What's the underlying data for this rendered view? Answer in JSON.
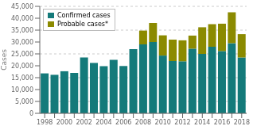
{
  "chart_data": {
    "type": "bar",
    "ylabel": "Cases",
    "categories": [
      "1998",
      null,
      "2000",
      null,
      "2002",
      null,
      "2004",
      null,
      "2006",
      null,
      "2008",
      null,
      "2010",
      null,
      "2012",
      null,
      "2014",
      null,
      "2016",
      null,
      "2018"
    ],
    "series": [
      {
        "name": "Confirmed cases",
        "color": "#147a7a",
        "values": [
          16800,
          16200,
          17700,
          17000,
          23500,
          21200,
          19800,
          22500,
          19900,
          27000,
          29000,
          30000,
          24300,
          22000,
          21900,
          27200,
          25000,
          28000,
          26200,
          29500,
          23500
        ]
      },
      {
        "name": "Probable cases*",
        "color": "#8b8a00",
        "values": [
          0,
          0,
          0,
          0,
          0,
          0,
          0,
          0,
          0,
          0,
          5800,
          8000,
          8500,
          9000,
          8800,
          5500,
          11200,
          9500,
          11500,
          13000,
          9800
        ]
      }
    ],
    "ylim": [
      0,
      45000
    ],
    "yticks": [
      0,
      {
        "value": 5000,
        "label": "5,000"
      },
      {
        "value": 10000,
        "label": "10,000"
      },
      {
        "value": 15000,
        "label": "15,000"
      },
      {
        "value": 20000,
        "label": "20,000"
      },
      {
        "value": 25000,
        "label": "25,000"
      },
      {
        "value": 30000,
        "label": "30,000"
      },
      {
        "value": 35000,
        "label": "35,000"
      },
      {
        "value": 40000,
        "label": "40,000"
      },
      {
        "value": 45000,
        "label": "45,000"
      }
    ],
    "grid": true,
    "stacked": true,
    "legend": "upper left"
  }
}
